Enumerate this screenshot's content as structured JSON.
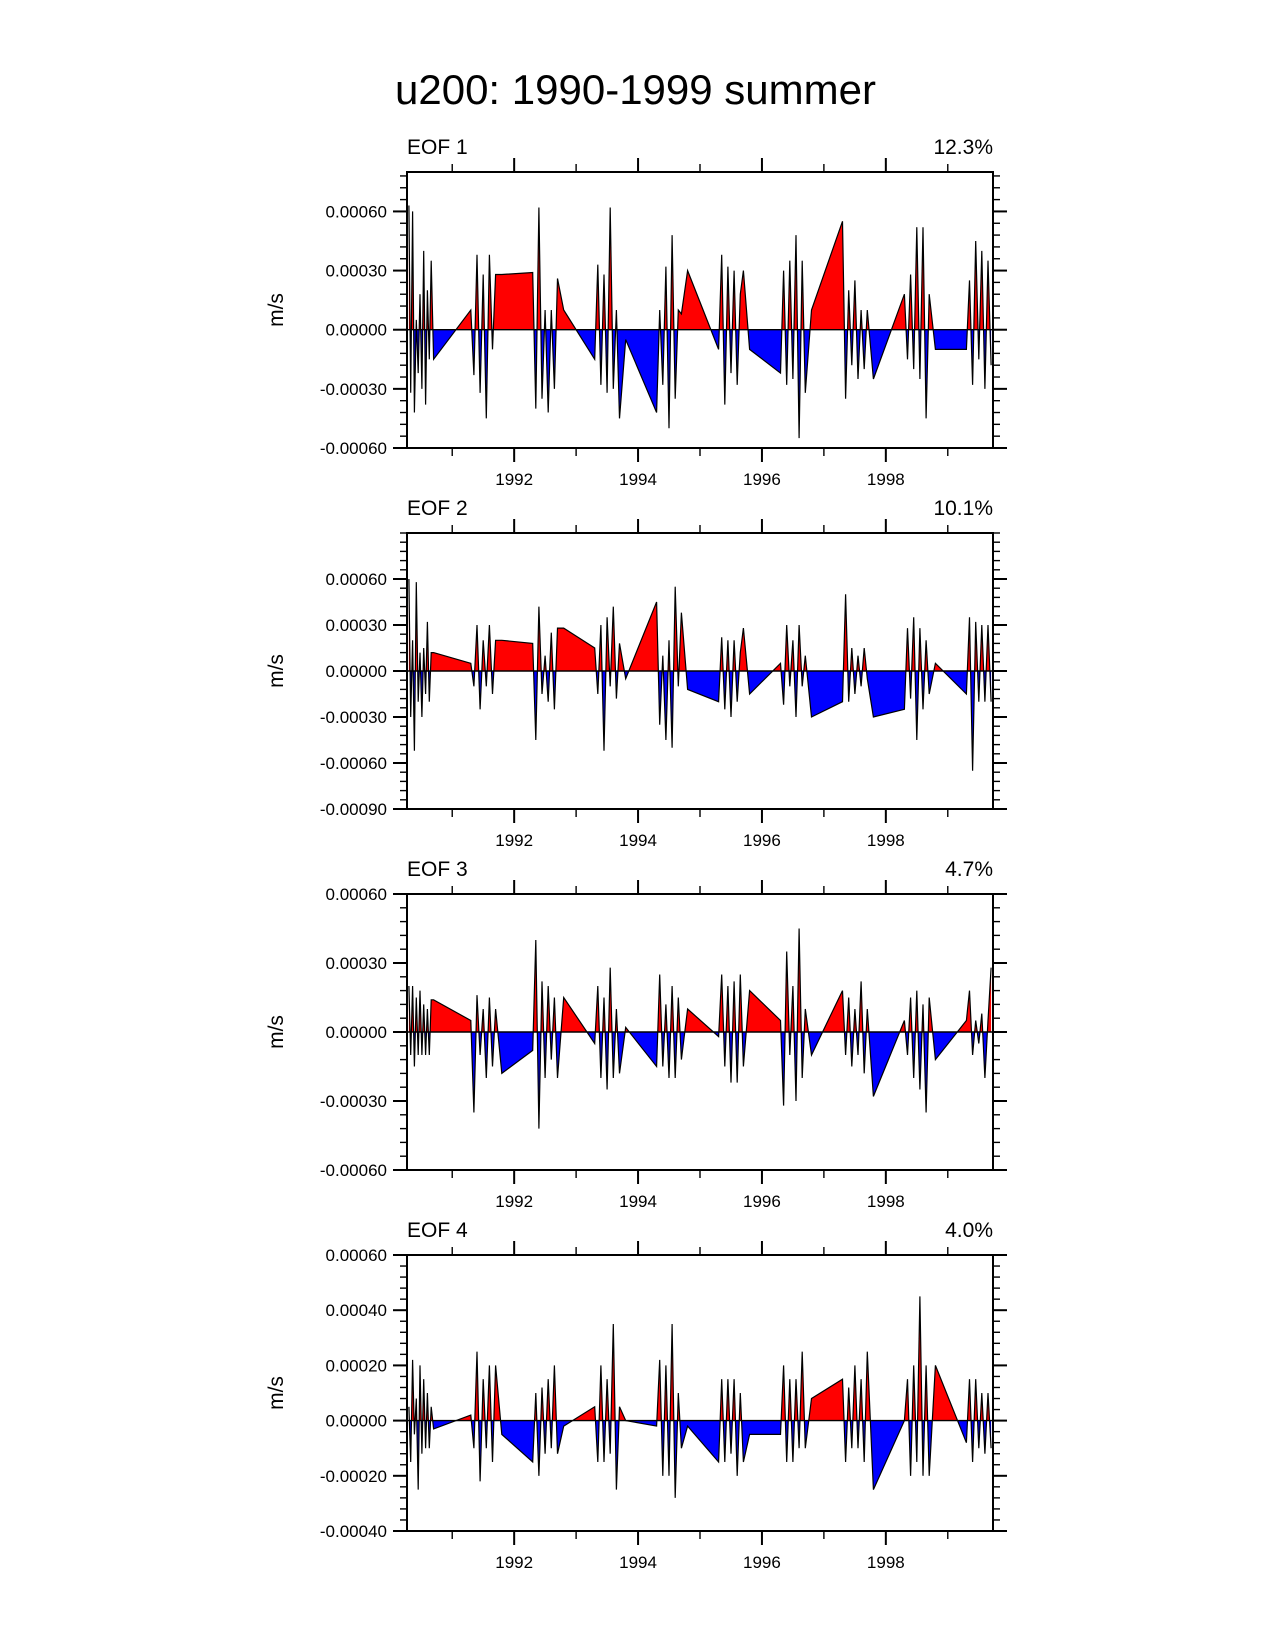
{
  "main_title": "u200: 1990-1999 summer",
  "colors": {
    "positive": "#ff0000",
    "negative": "#0000ff",
    "line": "#000000"
  },
  "chart_data": [
    {
      "type": "area",
      "panel": "EOF 1",
      "variance": "12.3%",
      "ylabel": "m/s",
      "xlim": [
        1990.27,
        1999.73
      ],
      "ylim": [
        -0.0006,
        0.0008
      ],
      "yticks": [
        -0.0006,
        -0.0003,
        0,
        0.0003,
        0.0006
      ],
      "ytick_labels": [
        "-0.00060",
        "-0.00030",
        "0.00000",
        "0.00030",
        "0.00060"
      ],
      "xticks": [
        1992,
        1994,
        1996,
        1998
      ],
      "xtick_labels": [
        "1992",
        "1994",
        "1996",
        "1998"
      ],
      "x": [
        1990.3,
        1990.33,
        1990.36,
        1990.39,
        1990.42,
        1990.45,
        1990.48,
        1990.51,
        1990.54,
        1990.57,
        1990.6,
        1990.63,
        1990.66,
        1990.7,
        1991.3,
        1991.35,
        1991.4,
        1991.45,
        1991.5,
        1991.55,
        1991.6,
        1991.65,
        1991.7,
        1991.8,
        1992.3,
        1992.35,
        1992.4,
        1992.45,
        1992.5,
        1992.55,
        1992.6,
        1992.65,
        1992.7,
        1992.8,
        1993.3,
        1993.35,
        1993.4,
        1993.45,
        1993.5,
        1993.55,
        1993.6,
        1993.65,
        1993.7,
        1993.8,
        1994.3,
        1994.35,
        1994.4,
        1994.45,
        1994.5,
        1994.55,
        1994.6,
        1994.65,
        1994.7,
        1994.8,
        1995.3,
        1995.35,
        1995.4,
        1995.45,
        1995.5,
        1995.55,
        1995.6,
        1995.65,
        1995.7,
        1995.8,
        1996.3,
        1996.35,
        1996.4,
        1996.45,
        1996.5,
        1996.55,
        1996.6,
        1996.65,
        1996.7,
        1996.8,
        1997.3,
        1997.35,
        1997.4,
        1997.45,
        1997.5,
        1997.55,
        1997.6,
        1997.65,
        1997.7,
        1997.8,
        1998.3,
        1998.35,
        1998.4,
        1998.45,
        1998.5,
        1998.55,
        1998.6,
        1998.65,
        1998.7,
        1998.8,
        1999.3,
        1999.35,
        1999.4,
        1999.45,
        1999.5,
        1999.55,
        1999.6,
        1999.65,
        1999.7
      ],
      "y": [
        0.00063,
        -0.00032,
        0.0006,
        -0.00042,
        5e-05,
        -0.00022,
        0.00018,
        -0.0003,
        0.0004,
        -0.00038,
        0.0002,
        -0.00015,
        0.00035,
        -0.00015,
        0.0001,
        -0.00023,
        0.00038,
        -0.00032,
        0.00028,
        -0.00045,
        0.00038,
        -0.0001,
        0.00028,
        0.00028,
        0.00029,
        -0.0004,
        0.00062,
        -0.00035,
        0.0001,
        -0.00042,
        0.0001,
        -0.0003,
        0.00026,
        0.0001,
        -0.00015,
        0.00033,
        -0.00028,
        0.00028,
        -0.00032,
        0.00062,
        -0.0003,
        0.0001,
        -0.00045,
        -5e-05,
        -0.00042,
        0.0001,
        -0.00028,
        0.00032,
        -0.0005,
        0.00048,
        -0.00035,
        0.0001,
        8e-05,
        0.0003,
        -0.0001,
        0.00038,
        -0.00038,
        0.00032,
        -0.00022,
        0.0003,
        -0.00028,
        0.00018,
        0.0003,
        -0.0001,
        -0.00022,
        0.0003,
        -0.00028,
        0.00035,
        -0.00025,
        0.00048,
        -0.00055,
        0.00035,
        -0.00032,
        0.0001,
        0.00055,
        -0.00035,
        0.0002,
        -0.00018,
        0.00025,
        -0.00025,
        0.0001,
        -0.0002,
        0.0001,
        -0.00025,
        0.00018,
        -0.00015,
        0.00028,
        -0.0002,
        0.00052,
        -0.00025,
        0.00052,
        -0.00045,
        0.00018,
        -0.0001,
        -0.0001,
        0.00025,
        -0.00028,
        0.00045,
        -0.00015,
        0.0004,
        -0.0003,
        0.00035,
        -0.00018
      ]
    },
    {
      "type": "area",
      "panel": "EOF 2",
      "variance": "10.1%",
      "ylabel": "m/s",
      "xlim": [
        1990.27,
        1999.73
      ],
      "ylim": [
        -0.0009,
        0.0009
      ],
      "yticks": [
        -0.0009,
        -0.0006,
        -0.0003,
        0,
        0.0003,
        0.0006
      ],
      "ytick_labels": [
        "-0.00090",
        "-0.00060",
        "-0.00030",
        "0.00000",
        "0.00030",
        "0.00060"
      ],
      "xticks": [
        1992,
        1994,
        1996,
        1998
      ],
      "xtick_labels": [
        "1992",
        "1994",
        "1996",
        "1998"
      ],
      "x": [
        1990.3,
        1990.33,
        1990.36,
        1990.39,
        1990.42,
        1990.45,
        1990.48,
        1990.51,
        1990.54,
        1990.57,
        1990.6,
        1990.63,
        1990.66,
        1990.7,
        1991.3,
        1991.35,
        1991.4,
        1991.45,
        1991.5,
        1991.55,
        1991.6,
        1991.65,
        1991.7,
        1991.8,
        1992.3,
        1992.35,
        1992.4,
        1992.45,
        1992.5,
        1992.55,
        1992.6,
        1992.65,
        1992.7,
        1992.8,
        1993.3,
        1993.35,
        1993.4,
        1993.45,
        1993.5,
        1993.55,
        1993.6,
        1993.65,
        1993.7,
        1993.8,
        1994.3,
        1994.35,
        1994.4,
        1994.45,
        1994.5,
        1994.55,
        1994.6,
        1994.65,
        1994.7,
        1994.8,
        1995.3,
        1995.35,
        1995.4,
        1995.45,
        1995.5,
        1995.55,
        1995.6,
        1995.65,
        1995.7,
        1995.8,
        1996.3,
        1996.35,
        1996.4,
        1996.45,
        1996.5,
        1996.55,
        1996.6,
        1996.65,
        1996.7,
        1996.8,
        1997.3,
        1997.35,
        1997.4,
        1997.45,
        1997.5,
        1997.55,
        1997.6,
        1997.65,
        1997.7,
        1997.8,
        1998.3,
        1998.35,
        1998.4,
        1998.45,
        1998.5,
        1998.55,
        1998.6,
        1998.65,
        1998.7,
        1998.8,
        1999.3,
        1999.35,
        1999.4,
        1999.45,
        1999.5,
        1999.55,
        1999.6,
        1999.65,
        1999.7
      ],
      "y": [
        0.0006,
        -0.0003,
        0.0002,
        -0.00052,
        0.00058,
        -0.0002,
        0.00012,
        -0.0003,
        0.00015,
        -0.00015,
        0.00032,
        -0.0002,
        0.00012,
        0.00012,
        5e-05,
        -0.0001,
        0.0003,
        -0.00025,
        0.0002,
        -0.0001,
        0.0003,
        -0.00015,
        0.0002,
        0.0002,
        0.00018,
        -0.00045,
        0.00042,
        -0.00015,
        0.0001,
        -0.0002,
        0.00025,
        -0.00025,
        0.00028,
        0.00028,
        0.00015,
        -0.00015,
        0.0003,
        -0.00052,
        0.00035,
        -0.0001,
        0.00042,
        -0.00018,
        0.00018,
        -5e-05,
        0.00045,
        -0.00035,
        0.0001,
        -0.00045,
        0.0002,
        -0.0005,
        0.00055,
        -0.0001,
        0.00038,
        -0.00012,
        -0.0002,
        0.00022,
        -0.00025,
        0.0002,
        -0.0003,
        0.0002,
        -0.0002,
        0.00012,
        0.00028,
        -0.00015,
        5e-05,
        -0.00022,
        0.0003,
        -0.0001,
        0.0002,
        -0.0003,
        0.0003,
        -0.0001,
        0.0001,
        -0.0003,
        -0.0002,
        0.0005,
        -0.0002,
        0.00015,
        -0.00015,
        0.0001,
        -0.0001,
        0.00015,
        -5e-05,
        -0.0003,
        -0.00025,
        0.00028,
        -0.00018,
        0.00035,
        -0.00045,
        0.00028,
        -0.00025,
        0.0002,
        -0.00015,
        5e-05,
        -0.00015,
        0.00035,
        -0.00065,
        0.00032,
        -0.0002,
        0.0003,
        -0.0002,
        0.0003,
        -0.0002
      ]
    },
    {
      "type": "area",
      "panel": "EOF 3",
      "variance": "4.7%",
      "ylabel": "m/s",
      "xlim": [
        1990.27,
        1999.73
      ],
      "ylim": [
        -0.0006,
        0.0006
      ],
      "yticks": [
        -0.0006,
        -0.0003,
        0,
        0.0003,
        0.0006
      ],
      "ytick_labels": [
        "-0.00060",
        "-0.00030",
        "0.00000",
        "0.00030",
        "0.00060"
      ],
      "xticks": [
        1992,
        1994,
        1996,
        1998
      ],
      "xtick_labels": [
        "1992",
        "1994",
        "1996",
        "1998"
      ],
      "x": [
        1990.3,
        1990.33,
        1990.36,
        1990.39,
        1990.42,
        1990.45,
        1990.48,
        1990.51,
        1990.54,
        1990.57,
        1990.6,
        1990.63,
        1990.66,
        1990.7,
        1991.3,
        1991.35,
        1991.4,
        1991.45,
        1991.5,
        1991.55,
        1991.6,
        1991.65,
        1991.7,
        1991.8,
        1992.3,
        1992.35,
        1992.4,
        1992.45,
        1992.5,
        1992.55,
        1992.6,
        1992.65,
        1992.7,
        1992.8,
        1993.3,
        1993.35,
        1993.4,
        1993.45,
        1993.5,
        1993.55,
        1993.6,
        1993.65,
        1993.7,
        1993.8,
        1994.3,
        1994.35,
        1994.4,
        1994.45,
        1994.5,
        1994.55,
        1994.6,
        1994.65,
        1994.7,
        1994.8,
        1995.3,
        1995.35,
        1995.4,
        1995.45,
        1995.5,
        1995.55,
        1995.6,
        1995.65,
        1995.7,
        1995.8,
        1996.3,
        1996.35,
        1996.4,
        1996.45,
        1996.5,
        1996.55,
        1996.6,
        1996.65,
        1996.7,
        1996.8,
        1997.3,
        1997.35,
        1997.4,
        1997.45,
        1997.5,
        1997.55,
        1997.6,
        1997.65,
        1997.7,
        1997.8,
        1998.3,
        1998.35,
        1998.4,
        1998.45,
        1998.5,
        1998.55,
        1998.6,
        1998.65,
        1998.7,
        1998.8,
        1999.3,
        1999.35,
        1999.4,
        1999.45,
        1999.5,
        1999.55,
        1999.6,
        1999.65,
        1999.7
      ],
      "y": [
        0.0002,
        -0.0001,
        0.0002,
        -0.00015,
        0.00015,
        -0.0001,
        0.00018,
        -0.0001,
        0.00012,
        -0.0001,
        0.0001,
        -0.0001,
        0.00014,
        0.00014,
        5e-05,
        -0.00035,
        0.00016,
        -0.0001,
        0.0001,
        -0.0002,
        0.00015,
        -0.00015,
        0.0001,
        -0.00018,
        -8e-05,
        0.0004,
        -0.00042,
        0.00022,
        -0.0002,
        0.0002,
        -0.00012,
        0.00015,
        -0.0002,
        0.00015,
        -5e-05,
        0.0002,
        -0.0002,
        0.00015,
        -0.00025,
        0.00028,
        -0.0002,
        0.0001,
        -0.00018,
        2e-05,
        -0.00015,
        0.00025,
        -0.00015,
        0.00012,
        -0.0002,
        0.0002,
        -0.0002,
        0.00015,
        -0.00012,
        0.0001,
        -2e-05,
        0.00025,
        -0.00015,
        0.0002,
        -0.00022,
        0.00022,
        -0.00022,
        0.00025,
        -0.00015,
        0.00018,
        5e-05,
        -0.00032,
        0.00035,
        -0.0001,
        0.0002,
        -0.0003,
        0.00045,
        -0.0002,
        0.0001,
        -0.0001,
        0.00018,
        -0.0001,
        0.00015,
        -0.00015,
        0.0001,
        -0.0001,
        0.00022,
        -0.00018,
        0.0001,
        -0.00028,
        5e-05,
        -0.0001,
        0.00015,
        -0.0002,
        0.00018,
        -0.00025,
        0.00012,
        -0.00035,
        0.00015,
        -0.00012,
        5e-05,
        0.00018,
        -0.0001,
        5e-05,
        -5e-05,
        8e-05,
        -0.0002,
        5e-05,
        0.00028
      ]
    },
    {
      "type": "area",
      "panel": "EOF 4",
      "variance": "4.0%",
      "ylabel": "m/s",
      "xlim": [
        1990.27,
        1999.73
      ],
      "ylim": [
        -0.0004,
        0.0006
      ],
      "yticks": [
        -0.0004,
        -0.0002,
        0,
        0.0002,
        0.0004,
        0.0006
      ],
      "ytick_labels": [
        "-0.00040",
        "-0.00020",
        "0.00000",
        "0.00020",
        "0.00040",
        "0.00060"
      ],
      "xticks": [
        1992,
        1994,
        1996,
        1998
      ],
      "xtick_labels": [
        "1992",
        "1994",
        "1996",
        "1998"
      ],
      "x": [
        1990.3,
        1990.33,
        1990.36,
        1990.39,
        1990.42,
        1990.45,
        1990.48,
        1990.51,
        1990.54,
        1990.57,
        1990.6,
        1990.63,
        1990.66,
        1990.7,
        1991.3,
        1991.35,
        1991.4,
        1991.45,
        1991.5,
        1991.55,
        1991.6,
        1991.65,
        1991.7,
        1991.8,
        1992.3,
        1992.35,
        1992.4,
        1992.45,
        1992.5,
        1992.55,
        1992.6,
        1992.65,
        1992.7,
        1992.8,
        1993.3,
        1993.35,
        1993.4,
        1993.45,
        1993.5,
        1993.55,
        1993.6,
        1993.65,
        1993.7,
        1993.8,
        1994.3,
        1994.35,
        1994.4,
        1994.45,
        1994.5,
        1994.55,
        1994.6,
        1994.65,
        1994.7,
        1994.8,
        1995.3,
        1995.35,
        1995.4,
        1995.45,
        1995.5,
        1995.55,
        1995.6,
        1995.65,
        1995.7,
        1995.8,
        1996.3,
        1996.35,
        1996.4,
        1996.45,
        1996.5,
        1996.55,
        1996.6,
        1996.65,
        1996.7,
        1996.8,
        1997.3,
        1997.35,
        1997.4,
        1997.45,
        1997.5,
        1997.55,
        1997.6,
        1997.65,
        1997.7,
        1997.8,
        1998.3,
        1998.35,
        1998.4,
        1998.45,
        1998.5,
        1998.55,
        1998.6,
        1998.65,
        1998.7,
        1998.8,
        1999.3,
        1999.35,
        1999.4,
        1999.45,
        1999.5,
        1999.55,
        1999.6,
        1999.65,
        1999.7
      ],
      "y": [
        5e-05,
        -0.00015,
        0.00022,
        -5e-05,
        8e-05,
        -0.00025,
        0.0002,
        -0.00012,
        0.00015,
        -0.0001,
        0.0001,
        -0.0001,
        5e-05,
        -3e-05,
        2e-05,
        -0.0001,
        0.00025,
        -0.00022,
        0.00015,
        -0.0001,
        0.0002,
        -0.00015,
        0.0002,
        -5e-05,
        -0.00015,
        0.0001,
        -0.0002,
        0.00012,
        -0.00012,
        0.00015,
        -0.0001,
        0.0002,
        -0.00012,
        -2e-05,
        5e-05,
        -0.00015,
        0.0002,
        -0.00015,
        0.00015,
        -0.00012,
        0.00035,
        -0.00025,
        5e-05,
        0,
        -2e-05,
        0.00022,
        -0.0002,
        0.0002,
        -0.0002,
        0.00035,
        -0.00028,
        0.0001,
        -0.0001,
        -2e-05,
        -0.00015,
        0.00015,
        -0.00015,
        0.00015,
        -0.00012,
        0.00015,
        -0.0002,
        0.0001,
        -0.00015,
        -5e-05,
        -5e-05,
        0.0002,
        -0.00015,
        0.00015,
        -0.00015,
        0.00015,
        -0.0001,
        0.00025,
        -0.0001,
        8e-05,
        0.00015,
        -0.00015,
        0.00012,
        -0.0001,
        0.0002,
        -0.0001,
        0.00015,
        -0.00015,
        0.00025,
        -0.00025,
        0,
        0.00015,
        -0.0002,
        0.0002,
        -0.00015,
        0.00045,
        -0.0002,
        0.0002,
        -0.0002,
        0.0002,
        -8e-05,
        0.00015,
        -0.00015,
        0.00015,
        -0.0001,
        0.0001,
        -0.00012,
        0.0001,
        -0.0001
      ]
    }
  ]
}
